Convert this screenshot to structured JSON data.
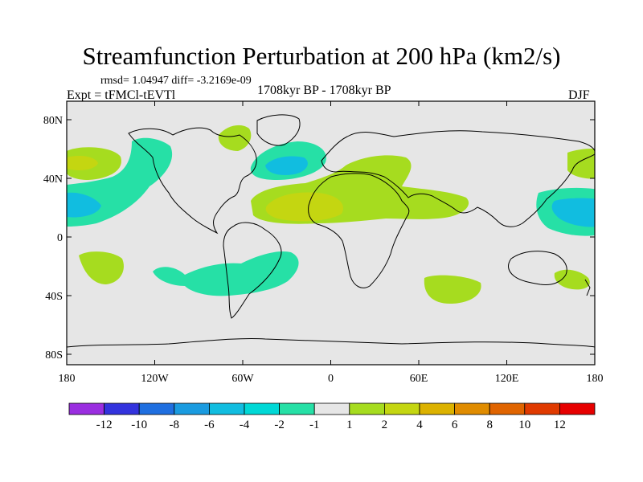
{
  "title": "Streamfunction Perturbation at 200 hPa (km2/s)",
  "stats": "rmsd= 1.04947 diff= -3.2169e-09",
  "expt": "Expt = tFMCl-tEVTl",
  "period": "1708kyr BP - 1708kyr BP",
  "season": "DJF",
  "map_data": {
    "type": "contour_map",
    "projection": "cylindrical equidistant",
    "lon_ticks": [
      "180",
      "120W",
      "60W",
      "0",
      "60E",
      "120E",
      "180"
    ],
    "lat_ticks": [
      "80N",
      "40N",
      "0",
      "40S",
      "80S"
    ],
    "colorbar": {
      "labels": [
        "-12",
        "-10",
        "-8",
        "-6",
        "-4",
        "-2",
        "-1",
        "1",
        "2",
        "4",
        "6",
        "8",
        "10",
        "12"
      ],
      "colors": [
        "#9a2ee0",
        "#3333dd",
        "#1f6fe0",
        "#1a9be0",
        "#11bde0",
        "#00d8d6",
        "#26e0a6",
        "#e6e6e6",
        "#a6dc1f",
        "#c4d611",
        "#dcb200",
        "#e08c00",
        "#e06400",
        "#e03a00",
        "#e60000"
      ]
    }
  }
}
